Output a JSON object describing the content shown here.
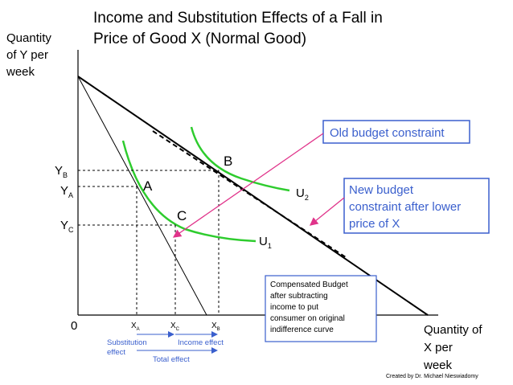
{
  "title": [
    "Income and Substitution Effects of a Fall in",
    "Price of Good X (Normal Good)"
  ],
  "y_axis_label": [
    "Quantity",
    "of Y per",
    "week"
  ],
  "x_axis_label": [
    "Quantity of",
    "X per",
    "week"
  ],
  "origin": "0",
  "points": [
    {
      "label": "A"
    },
    {
      "label": "B"
    },
    {
      "label": "C"
    }
  ],
  "curves": [
    {
      "main": "U",
      "sub": "2"
    },
    {
      "main": "U",
      "sub": "1"
    }
  ],
  "y_labels": [
    {
      "main": "Y",
      "sub": "B"
    },
    {
      "main": "Y",
      "sub": "A"
    },
    {
      "main": "Y",
      "sub": "C"
    }
  ],
  "x_labels": [
    {
      "main": "X",
      "sub": "A"
    },
    {
      "main": "X",
      "sub": "C"
    },
    {
      "main": "X",
      "sub": "B"
    }
  ],
  "effects": {
    "substitution": [
      "Substitution",
      "effect"
    ],
    "income": "Income effect",
    "total": "Total effect"
  },
  "callouts": {
    "old": "Old budget constraint",
    "new": [
      "New budget",
      "constraint after lower",
      "price of X"
    ],
    "compensated": [
      "Compensated Budget",
      "after subtracting",
      "income  to  put",
      "consumer on original",
      "indifference curve"
    ]
  },
  "credit": "Created by Dr. Michael Nieswiadomy"
}
